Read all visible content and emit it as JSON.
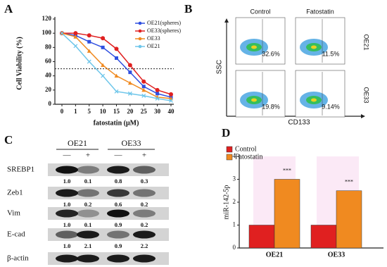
{
  "panel_labels": [
    "A",
    "B",
    "C",
    "D"
  ],
  "chart_data": [
    {
      "type": "line",
      "y_label": "Cell Viability (%)",
      "x_label": "fatostatin (μM)",
      "categories": [
        "0",
        "1",
        "5",
        "10",
        "15",
        "20",
        "25",
        "30",
        "40"
      ],
      "ylim": [
        0,
        120
      ],
      "yticks": [
        0,
        20,
        40,
        60,
        80,
        100,
        120
      ],
      "reference_line": 50,
      "series": [
        {
          "name": "OE21(spheres)",
          "color": "#2f4fe0",
          "marker": "square",
          "values": [
            100,
            97,
            88,
            80,
            65,
            45,
            25,
            15,
            10
          ]
        },
        {
          "name": "OE33(spheres)",
          "color": "#e02020",
          "marker": "circle",
          "values": [
            100,
            100,
            97,
            93,
            78,
            55,
            32,
            20,
            14
          ]
        },
        {
          "name": "OE33",
          "color": "#f08a20",
          "marker": "triangle",
          "values": [
            100,
            95,
            75,
            55,
            40,
            30,
            20,
            10,
            8
          ]
        },
        {
          "name": "OE21",
          "color": "#6ec6ea",
          "marker": "cross",
          "values": [
            100,
            82,
            60,
            40,
            18,
            15,
            12,
            8,
            5
          ]
        }
      ]
    },
    {
      "type": "bar",
      "y_label": "miR-142-5p",
      "categories": [
        "OE21",
        "OE33"
      ],
      "ylim": [
        0,
        4
      ],
      "yticks": [
        0,
        1,
        2,
        3,
        4
      ],
      "series": [
        {
          "name": "Control",
          "color": "#e02020",
          "values": [
            1,
            1
          ]
        },
        {
          "name": "Fatostatin",
          "color": "#f08a20",
          "values": [
            3.0,
            2.5
          ],
          "annotations": [
            "***",
            "***"
          ]
        }
      ]
    }
  ],
  "flow": {
    "columns": [
      "Control",
      "Fatostatin"
    ],
    "rows": [
      "OE21",
      "OE33"
    ],
    "percentages": [
      [
        "32.6%",
        "11.5%"
      ],
      [
        "19.8%",
        "9.14%"
      ]
    ],
    "x_label": "CD133",
    "y_label": "SSC"
  },
  "blot": {
    "groups": [
      "OE21",
      "OE33"
    ],
    "treatments": [
      "—",
      "+",
      "—",
      "+"
    ],
    "rows": [
      {
        "label": "SREBP1",
        "values": [
          "1.0",
          "0.1",
          "0.8",
          "0.3"
        ]
      },
      {
        "label": "Zeb1",
        "values": [
          "1.0",
          "0.2",
          "0.6",
          "0.2"
        ]
      },
      {
        "label": "Vim",
        "values": [
          "1.0",
          "0.1",
          "0.9",
          "0.2"
        ]
      },
      {
        "label": "E-cad",
        "values": [
          "1.0",
          "2.1",
          "0.9",
          "2.2"
        ]
      },
      {
        "label": "β-actin"
      }
    ]
  }
}
